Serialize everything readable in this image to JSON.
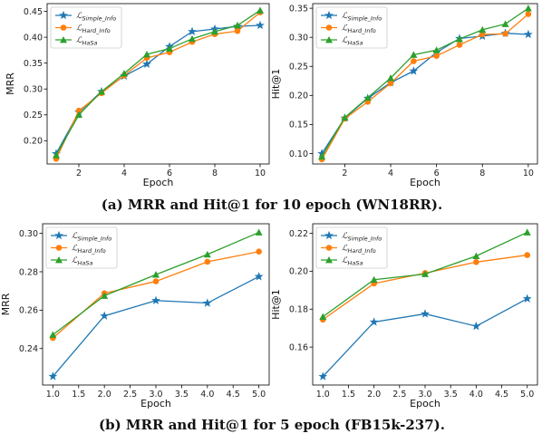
{
  "series_styles": [
    {
      "color": "#1f77b4",
      "marker": "star"
    },
    {
      "color": "#ff7f0e",
      "marker": "circle"
    },
    {
      "color": "#2ca02c",
      "marker": "triangle"
    }
  ],
  "legend_labels": [
    {
      "script": "ℒ",
      "sub": "Simple_Info"
    },
    {
      "script": "ℒ",
      "sub": "Hard_Info"
    },
    {
      "script": "ℒ",
      "sub": "HaSa"
    }
  ],
  "captions": {
    "top": "(a) MRR and Hit@1 for 10 epoch (WN18RR).",
    "bottom": "(b) MRR and Hit@1 for 5 epoch (FB15k-237)."
  },
  "chart_data": [
    {
      "type": "line",
      "xlabel": "Epoch",
      "ylabel": "MRR",
      "xlim": [
        0.6,
        10.4
      ],
      "ylim": [
        0.155,
        0.465
      ],
      "xticks": [
        2,
        4,
        6,
        8,
        10
      ],
      "xtick_labels": [
        "2",
        "4",
        "6",
        "8",
        "10"
      ],
      "yticks": [
        0.2,
        0.25,
        0.3,
        0.35,
        0.4,
        0.45
      ],
      "ytick_labels": [
        "0.20",
        "0.25",
        "0.30",
        "0.35",
        "0.40",
        "0.45"
      ],
      "legend_position": "top-left",
      "x": [
        1,
        2,
        3,
        4,
        5,
        6,
        7,
        8,
        9,
        10
      ],
      "series": [
        {
          "name": "ℒ Simple_Info",
          "values": [
            0.175,
            0.255,
            0.295,
            0.325,
            0.348,
            0.382,
            0.411,
            0.416,
            0.421,
            0.423
          ]
        },
        {
          "name": "ℒ Hard_Info",
          "values": [
            0.165,
            0.258,
            0.292,
            0.326,
            0.36,
            0.371,
            0.391,
            0.406,
            0.412,
            0.448
          ]
        },
        {
          "name": "ℒ HaSa",
          "values": [
            0.172,
            0.25,
            0.295,
            0.33,
            0.367,
            0.378,
            0.397,
            0.411,
            0.423,
            0.452
          ]
        }
      ]
    },
    {
      "type": "line",
      "xlabel": "Epoch",
      "ylabel": "Hit@1",
      "xlim": [
        0.6,
        10.4
      ],
      "ylim": [
        0.082,
        0.358
      ],
      "xticks": [
        2,
        4,
        6,
        8,
        10
      ],
      "xtick_labels": [
        "2",
        "4",
        "6",
        "8",
        "10"
      ],
      "yticks": [
        0.1,
        0.15,
        0.2,
        0.25,
        0.3,
        0.35
      ],
      "ytick_labels": [
        "0.10",
        "0.15",
        "0.20",
        "0.25",
        "0.30",
        "0.35"
      ],
      "legend_position": "top-left",
      "x": [
        1,
        2,
        3,
        4,
        5,
        6,
        7,
        8,
        9,
        10
      ],
      "series": [
        {
          "name": "ℒ Simple_Info",
          "values": [
            0.1,
            0.161,
            0.195,
            0.222,
            0.242,
            0.274,
            0.298,
            0.302,
            0.307,
            0.305
          ]
        },
        {
          "name": "ℒ Hard_Info",
          "values": [
            0.09,
            0.16,
            0.189,
            0.221,
            0.259,
            0.268,
            0.287,
            0.305,
            0.306,
            0.34
          ]
        },
        {
          "name": "ℒ HaSa",
          "values": [
            0.095,
            0.162,
            0.196,
            0.23,
            0.27,
            0.278,
            0.297,
            0.313,
            0.323,
            0.35
          ]
        }
      ]
    },
    {
      "type": "line",
      "xlabel": "Epoch",
      "ylabel": "MRR",
      "xlim": [
        0.8,
        5.2
      ],
      "ylim": [
        0.221,
        0.305
      ],
      "xticks": [
        1.0,
        1.5,
        2.0,
        2.5,
        3.0,
        3.5,
        4.0,
        4.5,
        5.0
      ],
      "xtick_labels": [
        "1.0",
        "1.5",
        "2.0",
        "2.5",
        "3.0",
        "3.5",
        "4.0",
        "4.5",
        "5.0"
      ],
      "yticks": [
        0.24,
        0.26,
        0.28,
        0.3
      ],
      "ytick_labels": [
        "0.24",
        "0.26",
        "0.28",
        "0.30"
      ],
      "legend_position": "top-left",
      "x": [
        1,
        2,
        3,
        4,
        5
      ],
      "series": [
        {
          "name": "ℒ Simple_Info",
          "values": [
            0.2255,
            0.257,
            0.265,
            0.2637,
            0.2775
          ]
        },
        {
          "name": "ℒ Hard_Info",
          "values": [
            0.2455,
            0.2688,
            0.275,
            0.2852,
            0.2905
          ]
        },
        {
          "name": "ℒ HaSa",
          "values": [
            0.2472,
            0.2675,
            0.2785,
            0.289,
            0.3005
          ]
        }
      ]
    },
    {
      "type": "line",
      "xlabel": "Epoch",
      "ylabel": "Hit@1",
      "xlim": [
        0.8,
        5.2
      ],
      "ylim": [
        0.14,
        0.225
      ],
      "xticks": [
        1.0,
        1.5,
        2.0,
        2.5,
        3.0,
        3.5,
        4.0,
        4.5,
        5.0
      ],
      "xtick_labels": [
        "1.0",
        "1.5",
        "2.0",
        "2.5",
        "3.0",
        "3.5",
        "4.0",
        "4.5",
        "5.0"
      ],
      "yticks": [
        0.16,
        0.18,
        0.2,
        0.22
      ],
      "ytick_labels": [
        "0.16",
        "0.18",
        "0.20",
        "0.22"
      ],
      "legend_position": "top-left",
      "x": [
        1,
        2,
        3,
        4,
        5
      ],
      "series": [
        {
          "name": "ℒ Simple_Info",
          "values": [
            0.1445,
            0.1732,
            0.1775,
            0.171,
            0.1855
          ]
        },
        {
          "name": "ℒ Hard_Info",
          "values": [
            0.1745,
            0.1935,
            0.199,
            0.2048,
            0.2085
          ]
        },
        {
          "name": "ℒ HaSa",
          "values": [
            0.176,
            0.1955,
            0.1985,
            0.208,
            0.2205
          ]
        }
      ]
    }
  ]
}
